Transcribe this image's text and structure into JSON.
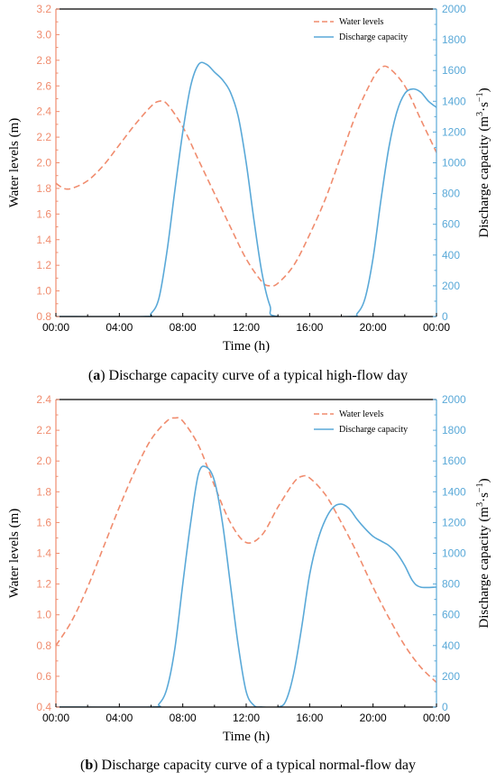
{
  "colors": {
    "water": "#F08C6E",
    "discharge": "#5AA9D8",
    "axis": "#000000"
  },
  "chart_data": [
    {
      "id": "a",
      "type": "line",
      "caption_label": "a",
      "caption_text": "Discharge capacity curve of a typical high-flow day",
      "xlabel": "Time (h)",
      "ylabel_left": "Water levels (m)",
      "ylabel_right_main": "Discharge capacity (m",
      "ylabel_right_sup1": "3",
      "ylabel_right_mid": "·s",
      "ylabel_right_sup2": "−1",
      "ylabel_right_end": ")",
      "x_ticks": [
        "00:00",
        "04:00",
        "08:00",
        "12:00",
        "16:00",
        "20:00",
        "00:00"
      ],
      "xlim": [
        0,
        24
      ],
      "ylim_left": [
        0.8,
        3.2
      ],
      "ylim_right": [
        0,
        2000
      ],
      "left_ticks": [
        "0.8",
        "1.0",
        "1.2",
        "1.4",
        "1.6",
        "1.8",
        "2.0",
        "2.2",
        "2.4",
        "2.6",
        "2.8",
        "3.0",
        "3.2"
      ],
      "right_ticks": [
        "0",
        "200",
        "400",
        "600",
        "800",
        "1000",
        "1200",
        "1400",
        "1600",
        "1800",
        "2000"
      ],
      "legend": [
        "Water levels",
        "Discharge capacity"
      ],
      "series": [
        {
          "name": "Water levels",
          "axis": "left",
          "style": "dashed",
          "x": [
            0,
            0.5,
            1,
            2,
            3,
            4,
            5,
            6,
            6.5,
            7,
            8,
            9,
            10,
            11,
            12,
            13,
            13.5,
            14,
            15,
            16,
            17,
            18,
            19,
            20,
            20.5,
            21,
            22,
            23,
            24
          ],
          "y": [
            1.84,
            1.8,
            1.8,
            1.86,
            1.98,
            2.14,
            2.3,
            2.44,
            2.48,
            2.46,
            2.28,
            2.02,
            1.76,
            1.5,
            1.25,
            1.07,
            1.04,
            1.06,
            1.2,
            1.44,
            1.72,
            2.06,
            2.4,
            2.66,
            2.74,
            2.74,
            2.6,
            2.34,
            2.08
          ]
        },
        {
          "name": "Discharge capacity",
          "axis": "right",
          "style": "solid",
          "x": [
            0,
            5.5,
            6,
            6.5,
            7,
            7.5,
            8,
            8.5,
            9,
            9.5,
            10,
            10.5,
            11,
            11.5,
            12,
            12.5,
            13,
            13.5,
            14,
            18.5,
            19,
            19.5,
            20,
            20.5,
            21,
            21.5,
            22,
            22.5,
            23,
            23.5,
            24
          ],
          "y": [
            0,
            0,
            20,
            120,
            420,
            820,
            1200,
            1500,
            1640,
            1640,
            1590,
            1540,
            1460,
            1300,
            1000,
            620,
            280,
            70,
            0,
            0,
            20,
            120,
            380,
            760,
            1100,
            1330,
            1450,
            1480,
            1460,
            1400,
            1360
          ]
        }
      ]
    },
    {
      "id": "b",
      "type": "line",
      "caption_label": "b",
      "caption_text": "Discharge capacity curve of a typical normal-flow day",
      "xlabel": "Time (h)",
      "ylabel_left": "Water levels (m)",
      "ylabel_right_main": "Discharge capacity (m",
      "ylabel_right_sup1": "3",
      "ylabel_right_mid": "·s",
      "ylabel_right_sup2": "−1",
      "ylabel_right_end": ")",
      "x_ticks": [
        "00:00",
        "04:00",
        "08:00",
        "12:00",
        "16:00",
        "20:00",
        "00:00"
      ],
      "xlim": [
        0,
        24
      ],
      "ylim_left": [
        0.4,
        2.4
      ],
      "ylim_right": [
        0,
        2000
      ],
      "left_ticks": [
        "0.4",
        "0.6",
        "0.8",
        "1.0",
        "1.2",
        "1.4",
        "1.6",
        "1.8",
        "2.0",
        "2.2",
        "2.4"
      ],
      "right_ticks": [
        "0",
        "200",
        "400",
        "600",
        "800",
        "1000",
        "1200",
        "1400",
        "1600",
        "1800",
        "2000"
      ],
      "legend": [
        "Water levels",
        "Discharge capacity"
      ],
      "series": [
        {
          "name": "Water levels",
          "axis": "left",
          "style": "dashed",
          "x": [
            0,
            1,
            2,
            3,
            4,
            5,
            6,
            7,
            7.5,
            8,
            9,
            10,
            11,
            12,
            13,
            14,
            15,
            15.5,
            16,
            17,
            18,
            19,
            20,
            21,
            22,
            23,
            24
          ],
          "y": [
            0.8,
            0.96,
            1.18,
            1.44,
            1.7,
            1.94,
            2.14,
            2.26,
            2.28,
            2.26,
            2.1,
            1.84,
            1.6,
            1.47,
            1.52,
            1.7,
            1.86,
            1.9,
            1.89,
            1.78,
            1.6,
            1.4,
            1.18,
            0.98,
            0.8,
            0.66,
            0.56
          ]
        },
        {
          "name": "Discharge capacity",
          "axis": "right",
          "style": "solid",
          "x": [
            0,
            6,
            6.5,
            7,
            7.5,
            8,
            8.5,
            9,
            9.5,
            10,
            10.5,
            11,
            11.5,
            12,
            12.5,
            13,
            14,
            14.5,
            15,
            15.5,
            16,
            16.5,
            17,
            17.5,
            18,
            18.5,
            19,
            19.5,
            20,
            20.5,
            21,
            21.5,
            22,
            22.5,
            23,
            24
          ],
          "y": [
            0,
            0,
            20,
            120,
            380,
            800,
            1200,
            1520,
            1560,
            1470,
            1200,
            800,
            400,
            100,
            10,
            0,
            0,
            40,
            220,
            520,
            860,
            1080,
            1220,
            1300,
            1320,
            1290,
            1220,
            1160,
            1110,
            1080,
            1050,
            1000,
            920,
            820,
            780,
            780
          ]
        }
      ]
    }
  ]
}
